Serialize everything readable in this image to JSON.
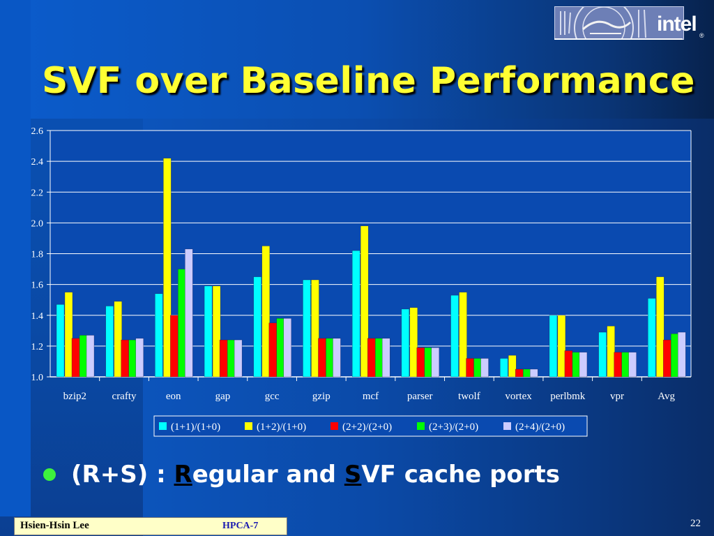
{
  "slide": {
    "title": "SVF over Baseline Performance",
    "logo_text": "intel",
    "logo_mark": "®",
    "bullet": {
      "prefix": "(R+S) : ",
      "r_letter": "R",
      "r_rest": "egular and ",
      "s_letter": "S",
      "s_rest": "VF cache ports"
    },
    "footer": {
      "author": "Hsien-Hsin Lee",
      "conference": "HPCA-7"
    },
    "page_number": "22"
  },
  "colors": {
    "title": "#ffff33",
    "bullet_dot": "#3df23d",
    "plot_area": "#0a4ab0",
    "series": [
      "#00ffff",
      "#ffff00",
      "#ff0000",
      "#00ff00",
      "#ccccff"
    ]
  },
  "chart_data": {
    "type": "bar",
    "title": "",
    "xlabel": "",
    "ylabel": "",
    "ylim": [
      1.0,
      2.6
    ],
    "yticks": [
      "1.0",
      "1.2",
      "1.4",
      "1.6",
      "1.8",
      "2.0",
      "2.2",
      "2.4",
      "2.6"
    ],
    "grid": true,
    "legend_position": "bottom",
    "categories": [
      "bzip2",
      "crafty",
      "eon",
      "gap",
      "gcc",
      "gzip",
      "mcf",
      "parser",
      "twolf",
      "vortex",
      "perlbmk",
      "vpr",
      "Avg"
    ],
    "series": [
      {
        "name": "(1+1)/(1+0)",
        "values": [
          1.47,
          1.46,
          1.54,
          1.59,
          1.65,
          1.63,
          1.82,
          1.44,
          1.53,
          1.12,
          1.4,
          1.29,
          1.51
        ]
      },
      {
        "name": "(1+2)/(1+0)",
        "values": [
          1.55,
          1.49,
          2.42,
          1.59,
          1.85,
          1.63,
          1.98,
          1.45,
          1.55,
          1.14,
          1.4,
          1.33,
          1.65
        ]
      },
      {
        "name": "(2+2)/(2+0)",
        "values": [
          1.25,
          1.24,
          1.4,
          1.24,
          1.35,
          1.25,
          1.25,
          1.19,
          1.12,
          1.05,
          1.17,
          1.16,
          1.24
        ]
      },
      {
        "name": "(2+3)/(2+0)",
        "values": [
          1.27,
          1.24,
          1.7,
          1.24,
          1.38,
          1.25,
          1.25,
          1.19,
          1.12,
          1.05,
          1.16,
          1.16,
          1.28
        ]
      },
      {
        "name": "(2+4)/(2+0)",
        "values": [
          1.27,
          1.25,
          1.83,
          1.24,
          1.38,
          1.25,
          1.25,
          1.19,
          1.12,
          1.05,
          1.16,
          1.16,
          1.29
        ]
      }
    ]
  }
}
